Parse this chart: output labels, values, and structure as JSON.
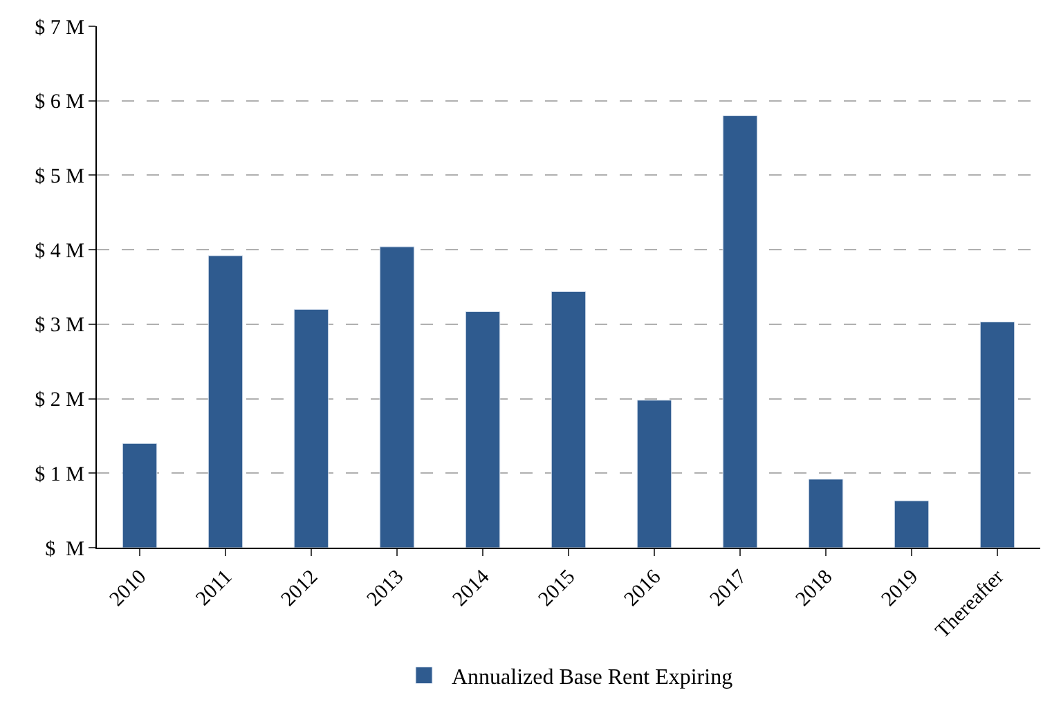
{
  "chart_data": {
    "type": "bar",
    "categories": [
      "2010",
      "2011",
      "2012",
      "2013",
      "2014",
      "2015",
      "2016",
      "2017",
      "2018",
      "2019",
      "Thereafter"
    ],
    "series": [
      {
        "name": "Annualized Base Rent Expiring",
        "color": "#2f5b8f",
        "values": [
          1.4,
          3.92,
          3.2,
          4.04,
          3.17,
          3.44,
          1.98,
          5.8,
          0.92,
          0.63,
          3.03
        ]
      }
    ],
    "ylim": [
      0,
      7
    ],
    "yticks": [
      {
        "value": 0,
        "label": "$  M"
      },
      {
        "value": 1,
        "label": "$ 1 M"
      },
      {
        "value": 2,
        "label": "$ 2 M"
      },
      {
        "value": 3,
        "label": "$ 3 M"
      },
      {
        "value": 4,
        "label": "$ 4 M"
      },
      {
        "value": 5,
        "label": "$ 5 M"
      },
      {
        "value": 6,
        "label": "$ 6 M"
      },
      {
        "value": 7,
        "label": "$ 7 M"
      }
    ],
    "grid": "y",
    "legend": "bottom"
  }
}
